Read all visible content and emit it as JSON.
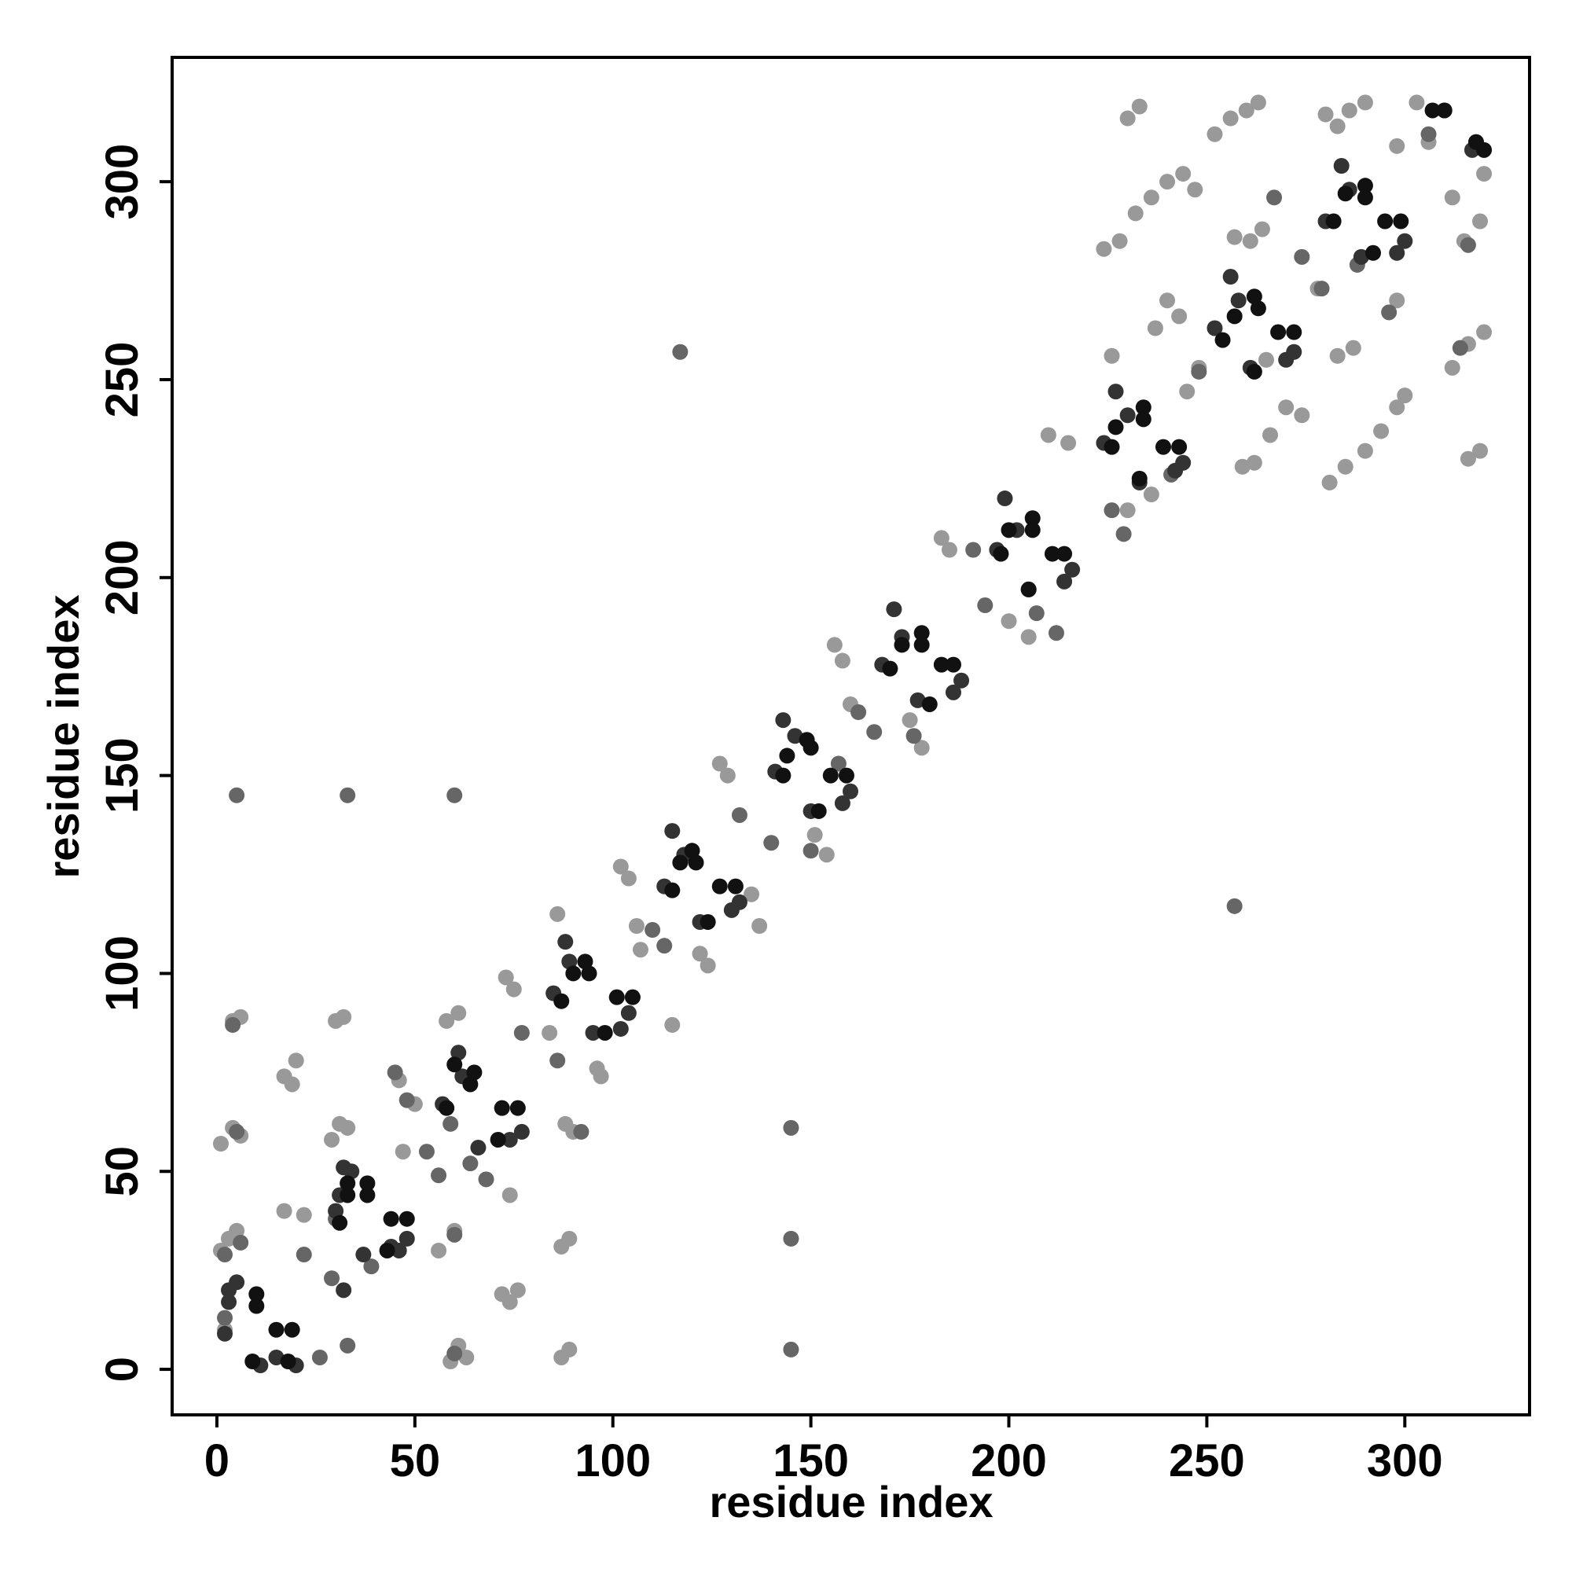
{
  "chart_data": {
    "type": "scatter",
    "x_label": "residue index",
    "y_label": "residue index",
    "xlim": [
      -11.3,
      331.5
    ],
    "ylim": [
      -11.5,
      331.4
    ],
    "xticks": [
      0,
      50,
      100,
      150,
      200,
      250,
      300
    ],
    "yticks": [
      0,
      50,
      100,
      150,
      200,
      250,
      300
    ],
    "grid": false,
    "series": [
      {
        "color": "#999999",
        "x": [
          1,
          4,
          6,
          4,
          6,
          17,
          19,
          20,
          1,
          3,
          5,
          2,
          17,
          22,
          29,
          31,
          33,
          32,
          30,
          46,
          50,
          47,
          56,
          60,
          58,
          61,
          59,
          61,
          63,
          72,
          74,
          76,
          74,
          73,
          75,
          84,
          86,
          87,
          89,
          87,
          89,
          90,
          88,
          96,
          97,
          102,
          104,
          106,
          107,
          115,
          122,
          124,
          127,
          129,
          135,
          137,
          156,
          158,
          151,
          154,
          160,
          175,
          178,
          183,
          185,
          200,
          205,
          210,
          215,
          224,
          228,
          232,
          236,
          240,
          244,
          247,
          230,
          233,
          226,
          230,
          236,
          237,
          240,
          243,
          245,
          248,
          252,
          256,
          260,
          263,
          259,
          262,
          257,
          261,
          264,
          266,
          270,
          274,
          278,
          281,
          285,
          290,
          294,
          298,
          300,
          280,
          283,
          286,
          290,
          283,
          287,
          298,
          303,
          306,
          312,
          315,
          319,
          320,
          316,
          312,
          316,
          319,
          320,
          298,
          265,
          120
        ],
        "values": [
          57,
          61,
          59,
          88,
          89,
          74,
          72,
          78,
          30,
          33,
          35,
          10,
          40,
          39,
          58,
          62,
          61,
          89,
          88,
          73,
          67,
          55,
          30,
          35,
          88,
          90,
          2,
          6,
          3,
          19,
          17,
          20,
          44,
          99,
          96,
          85,
          115,
          31,
          33,
          3,
          5,
          60,
          62,
          76,
          74,
          127,
          124,
          112,
          106,
          87,
          105,
          102,
          153,
          150,
          120,
          112,
          183,
          179,
          135,
          130,
          168,
          164,
          157,
          210,
          207,
          189,
          185,
          236,
          234,
          283,
          285,
          292,
          296,
          300,
          302,
          298,
          316,
          319,
          256,
          217,
          221,
          263,
          270,
          266,
          247,
          253,
          312,
          316,
          318,
          320,
          228,
          229,
          286,
          285,
          288,
          236,
          243,
          241,
          273,
          224,
          228,
          232,
          237,
          243,
          246,
          317,
          314,
          318,
          320,
          256,
          258,
          270,
          320,
          310,
          296,
          285,
          290,
          262,
          259,
          253,
          230,
          232,
          302,
          309,
          255,
          131
        ]
      },
      {
        "color": "#666666",
        "x": [
          2,
          2,
          6,
          5,
          4,
          22,
          29,
          30,
          39,
          45,
          48,
          53,
          56,
          60,
          59,
          64,
          68,
          77,
          86,
          92,
          110,
          113,
          132,
          140,
          150,
          157,
          162,
          166,
          176,
          191,
          194,
          207,
          212,
          226,
          229,
          241,
          248,
          267,
          274,
          279,
          288,
          296,
          306,
          314,
          316,
          26,
          33,
          60,
          145,
          145,
          145,
          60,
          33,
          5,
          117,
          257
        ],
        "values": [
          13,
          29,
          32,
          60,
          87,
          29,
          23,
          38,
          26,
          75,
          68,
          55,
          49,
          34,
          62,
          52,
          48,
          85,
          78,
          60,
          111,
          107,
          140,
          133,
          131,
          153,
          166,
          161,
          160,
          207,
          193,
          191,
          186,
          217,
          211,
          226,
          252,
          296,
          281,
          273,
          279,
          267,
          312,
          258,
          284,
          3,
          6,
          4,
          33,
          61,
          5,
          145,
          145,
          145,
          257,
          117
        ]
      },
      {
        "color": "#333333",
        "x": [
          3,
          3,
          5,
          2,
          11,
          20,
          32,
          34,
          30,
          37,
          46,
          48,
          61,
          62,
          57,
          66,
          74,
          77,
          88,
          89,
          85,
          95,
          102,
          104,
          115,
          118,
          113,
          122,
          130,
          132,
          143,
          146,
          141,
          150,
          158,
          160,
          171,
          173,
          168,
          177,
          186,
          188,
          199,
          202,
          197,
          205,
          214,
          216,
          227,
          230,
          224,
          233,
          242,
          244,
          256,
          258,
          252,
          261,
          270,
          272,
          284,
          286,
          280,
          289,
          298,
          300,
          310,
          318,
          317,
          32,
          15,
          31,
          44
        ],
        "values": [
          20,
          17,
          22,
          9,
          1,
          1,
          51,
          50,
          40,
          29,
          30,
          33,
          80,
          74,
          67,
          56,
          58,
          60,
          108,
          103,
          95,
          85,
          86,
          90,
          136,
          130,
          122,
          113,
          116,
          118,
          164,
          160,
          151,
          141,
          143,
          146,
          192,
          185,
          178,
          169,
          171,
          174,
          220,
          212,
          207,
          197,
          199,
          202,
          247,
          241,
          234,
          224,
          227,
          229,
          276,
          270,
          263,
          253,
          255,
          257,
          304,
          298,
          290,
          281,
          282,
          285,
          318,
          310,
          308,
          20,
          3,
          44,
          31
        ]
      },
      {
        "color": "#111111",
        "x": [
          10,
          10,
          15,
          19,
          9,
          18,
          31,
          38,
          38,
          44,
          48,
          43,
          33,
          33,
          64,
          65,
          72,
          76,
          71,
          58,
          60,
          93,
          94,
          101,
          105,
          98,
          87,
          90,
          120,
          121,
          127,
          131,
          124,
          115,
          117,
          149,
          150,
          155,
          159,
          152,
          143,
          144,
          178,
          178,
          183,
          186,
          180,
          170,
          173,
          206,
          206,
          211,
          214,
          205,
          198,
          200,
          234,
          234,
          239,
          243,
          233,
          226,
          227,
          262,
          263,
          268,
          272,
          262,
          254,
          257,
          290,
          290,
          295,
          299,
          292,
          282,
          285,
          307,
          310,
          318,
          320
        ],
        "values": [
          19,
          16,
          10,
          10,
          2,
          2,
          37,
          47,
          44,
          38,
          38,
          30,
          44,
          47,
          72,
          75,
          66,
          66,
          58,
          66,
          77,
          103,
          100,
          94,
          94,
          85,
          93,
          100,
          131,
          128,
          122,
          122,
          113,
          121,
          128,
          159,
          157,
          150,
          150,
          141,
          150,
          155,
          186,
          183,
          178,
          178,
          168,
          177,
          183,
          215,
          212,
          206,
          206,
          197,
          206,
          212,
          243,
          240,
          233,
          233,
          225,
          233,
          238,
          271,
          268,
          262,
          262,
          252,
          260,
          266,
          299,
          296,
          290,
          290,
          282,
          290,
          297,
          318,
          318,
          310,
          308
        ]
      }
    ]
  }
}
